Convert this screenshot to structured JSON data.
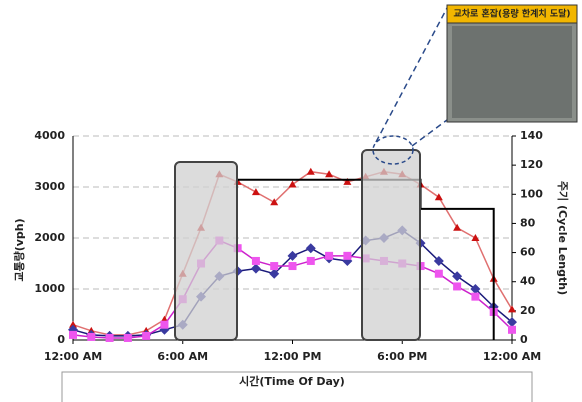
{
  "chart_data": {
    "type": "line",
    "y_label": "교통량(vph)",
    "y2_label": "주기 (Cycle Length)",
    "x_label": "시간(Time Of Day)",
    "inset_caption": "교차로 혼잡(용량 한계치 도달)",
    "xlim": [
      0,
      24
    ],
    "xticks": [
      {
        "value": 0,
        "label": "12:00 AM"
      },
      {
        "value": 6,
        "label": "6:00 AM"
      },
      {
        "value": 12,
        "label": "12:00 PM"
      },
      {
        "value": 18,
        "label": "6:00 PM"
      },
      {
        "value": 24,
        "label": "12:00 AM"
      }
    ],
    "ylim": [
      0,
      4000
    ],
    "yticks": [
      0,
      1000,
      2000,
      3000,
      4000
    ],
    "y2lim": [
      0,
      140
    ],
    "y2ticks": [
      0,
      20,
      40,
      60,
      80,
      100,
      120,
      140
    ],
    "grid": true,
    "x": [
      0,
      1,
      2,
      3,
      4,
      5,
      6,
      7,
      8,
      9,
      10,
      11,
      12,
      13,
      14,
      15,
      16,
      17,
      18,
      19,
      20,
      21,
      22,
      23,
      24
    ],
    "series": [
      {
        "color": "#e07070",
        "marker_color": "#cc1111",
        "marker": "triangle",
        "values": [
          300,
          180,
          100,
          100,
          180,
          400,
          1300,
          2200,
          3250,
          3100,
          2900,
          2700,
          3050,
          3300,
          3250,
          3100,
          3200,
          3300,
          3250,
          3050,
          2800,
          2200,
          2000,
          1200,
          600
        ]
      },
      {
        "color": "#1a1a7a",
        "marker_color": "#3a3aa0",
        "marker": "diamond",
        "values": [
          200,
          100,
          80,
          80,
          100,
          200,
          300,
          850,
          1250,
          1350,
          1400,
          1300,
          1650,
          1800,
          1600,
          1550,
          1950,
          2000,
          2150,
          1900,
          1550,
          1250,
          1000,
          650,
          350
        ]
      },
      {
        "color": "#cc22cc",
        "marker_color": "#ee55ee",
        "marker": "square",
        "values": [
          100,
          60,
          40,
          40,
          80,
          300,
          800,
          1500,
          1950,
          1800,
          1550,
          1450,
          1450,
          1550,
          1650,
          1650,
          1600,
          1550,
          1500,
          1450,
          1300,
          1050,
          850,
          550,
          200
        ]
      },
      {
        "color": "#000000",
        "marker": "none",
        "axis": "y2",
        "x": [
          9,
          19,
          19,
          23,
          23
        ],
        "values": [
          110,
          110,
          90,
          90,
          0
        ]
      }
    ]
  }
}
